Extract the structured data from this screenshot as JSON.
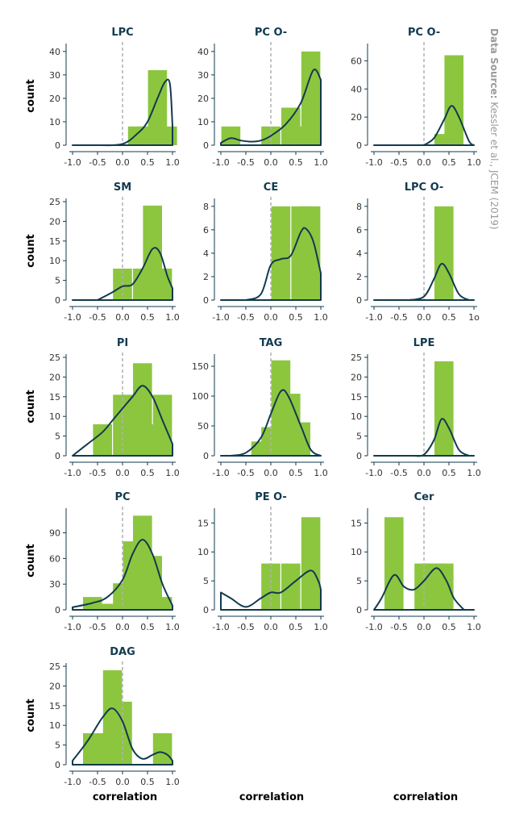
{
  "chart_data": [
    {
      "type": "bar",
      "title": "LPC",
      "ylabel": "count",
      "xlabel": "",
      "ylim": [
        0,
        42
      ],
      "yticks": [
        0,
        10,
        20,
        30,
        40
      ],
      "xticks": [
        "-1.0",
        "-0.5",
        "0.0",
        "0.5",
        "1.0"
      ],
      "bars": [
        {
          "x": 0.3,
          "value": 8
        },
        {
          "x": 0.5,
          "value": 8
        },
        {
          "x": 0.7,
          "value": 32
        },
        {
          "x": 0.9,
          "value": 8
        }
      ],
      "density": [
        [
          -0.5,
          0
        ],
        [
          0.0,
          0.5
        ],
        [
          0.3,
          5
        ],
        [
          0.5,
          10
        ],
        [
          0.7,
          20
        ],
        [
          0.85,
          27
        ],
        [
          0.95,
          26
        ],
        [
          1.0,
          8
        ]
      ],
      "zero_line": true
    },
    {
      "type": "bar",
      "title": "PC O-",
      "ylabel": "",
      "xlabel": "",
      "ylim": [
        0,
        42
      ],
      "yticks": [
        0,
        10,
        20,
        30,
        40
      ],
      "xticks": [
        "-1.0",
        "-0.5",
        "0.0",
        "0.5",
        "1.0"
      ],
      "bars": [
        {
          "x": -0.8,
          "value": 8
        },
        {
          "x": 0.0,
          "value": 8
        },
        {
          "x": 0.4,
          "value": 16
        },
        {
          "x": 0.6,
          "value": 8
        },
        {
          "x": 0.8,
          "value": 40
        }
      ],
      "density": [
        [
          -1.0,
          1
        ],
        [
          -0.8,
          3
        ],
        [
          -0.6,
          2
        ],
        [
          -0.4,
          1.5
        ],
        [
          -0.2,
          2
        ],
        [
          0.0,
          4
        ],
        [
          0.3,
          9
        ],
        [
          0.6,
          18
        ],
        [
          0.85,
          32
        ],
        [
          1.0,
          28
        ]
      ],
      "zero_line": true
    },
    {
      "type": "bar",
      "title": "PC O-",
      "ylabel": "",
      "xlabel": "",
      "ylim": [
        0,
        70
      ],
      "yticks": [
        0,
        20,
        40,
        60
      ],
      "xticks": [
        "-1.0",
        "-0.5",
        "0.0",
        "0.5",
        "1.0"
      ],
      "bars": [
        {
          "x": 0.4,
          "value": 8
        },
        {
          "x": 0.6,
          "value": 64
        }
      ],
      "density": [
        [
          0.0,
          0
        ],
        [
          0.2,
          5
        ],
        [
          0.4,
          18
        ],
        [
          0.55,
          28
        ],
        [
          0.7,
          20
        ],
        [
          0.9,
          3
        ],
        [
          1.0,
          0
        ]
      ],
      "zero_line": true
    },
    {
      "type": "bar",
      "title": "SM",
      "ylabel": "count",
      "xlabel": "",
      "ylim": [
        0,
        25
      ],
      "yticks": [
        0,
        5,
        10,
        15,
        20,
        25
      ],
      "xticks": [
        "-1.0",
        "-0.5",
        "0.0",
        "0.5",
        "1.0"
      ],
      "bars": [
        {
          "x": 0.0,
          "value": 8
        },
        {
          "x": 0.4,
          "value": 8
        },
        {
          "x": 0.6,
          "value": 24
        },
        {
          "x": 0.8,
          "value": 8
        }
      ],
      "density": [
        [
          -0.5,
          0
        ],
        [
          -0.2,
          2
        ],
        [
          0.0,
          3.5
        ],
        [
          0.2,
          4
        ],
        [
          0.4,
          8
        ],
        [
          0.6,
          13
        ],
        [
          0.75,
          12
        ],
        [
          0.9,
          6
        ],
        [
          1.0,
          3
        ]
      ],
      "zero_line": true
    },
    {
      "type": "bar",
      "title": "CE",
      "ylabel": "",
      "xlabel": "",
      "ylim": [
        0,
        8.4
      ],
      "yticks": [
        0,
        2,
        4,
        6,
        8
      ],
      "xticks": [
        "-1.0",
        "-0.5",
        "0.0",
        "0.5",
        "1.0"
      ],
      "bars": [
        {
          "x": 0.2,
          "value": 8
        },
        {
          "x": 0.6,
          "value": 8
        },
        {
          "x": 0.8,
          "value": 8
        }
      ],
      "density": [
        [
          -0.5,
          0
        ],
        [
          -0.2,
          0.5
        ],
        [
          0.0,
          3
        ],
        [
          0.2,
          3.5
        ],
        [
          0.4,
          3.8
        ],
        [
          0.6,
          5.8
        ],
        [
          0.7,
          6.1
        ],
        [
          0.85,
          5
        ],
        [
          1.0,
          2.3
        ]
      ],
      "zero_line": true
    },
    {
      "type": "bar",
      "title": "LPC O-",
      "ylabel": "",
      "xlabel": "",
      "ylim": [
        0,
        8.4
      ],
      "yticks": [
        0,
        2,
        4,
        6,
        8
      ],
      "xticks": [
        "-1.0",
        "-0.5",
        "0.0",
        "0.5",
        "1o"
      ],
      "bars": [
        {
          "x": 0.4,
          "value": 8
        }
      ],
      "density": [
        [
          -0.3,
          0
        ],
        [
          0.0,
          0.3
        ],
        [
          0.2,
          1.8
        ],
        [
          0.35,
          3.1
        ],
        [
          0.5,
          2.3
        ],
        [
          0.7,
          0.5
        ],
        [
          0.9,
          0
        ]
      ],
      "zero_line": true
    },
    {
      "type": "bar",
      "title": "PI",
      "ylabel": "count",
      "xlabel": "",
      "ylim": [
        0,
        25
      ],
      "yticks": [
        0,
        5,
        10,
        15,
        20,
        25
      ],
      "xticks": [
        "-1.0",
        "-0.5",
        "0.0",
        "0.5",
        "1.0"
      ],
      "bars": [
        {
          "x": -0.4,
          "value": 8
        },
        {
          "x": 0.0,
          "value": 15.5
        },
        {
          "x": 0.2,
          "value": 15.5
        },
        {
          "x": 0.4,
          "value": 23.5
        },
        {
          "x": 0.6,
          "value": 8
        },
        {
          "x": 0.8,
          "value": 15.5
        }
      ],
      "density": [
        [
          -1.0,
          0
        ],
        [
          -0.7,
          3
        ],
        [
          -0.4,
          6
        ],
        [
          -0.2,
          9
        ],
        [
          0.0,
          12
        ],
        [
          0.2,
          15
        ],
        [
          0.4,
          17.8
        ],
        [
          0.6,
          15
        ],
        [
          0.8,
          9
        ],
        [
          1.0,
          3
        ]
      ],
      "zero_line": true
    },
    {
      "type": "bar",
      "title": "TAG",
      "ylabel": "",
      "xlabel": "",
      "ylim": [
        0,
        165
      ],
      "yticks": [
        0,
        50,
        100,
        150
      ],
      "xticks": [
        "-1.0",
        "-0.5",
        "0.0",
        "0.5",
        "1.0"
      ],
      "bars": [
        {
          "x": -0.2,
          "value": 24
        },
        {
          "x": 0.0,
          "value": 48
        },
        {
          "x": 0.2,
          "value": 160
        },
        {
          "x": 0.4,
          "value": 104
        },
        {
          "x": 0.6,
          "value": 56
        }
      ],
      "density": [
        [
          -0.8,
          0
        ],
        [
          -0.5,
          5
        ],
        [
          -0.2,
          30
        ],
        [
          0.0,
          70
        ],
        [
          0.2,
          108
        ],
        [
          0.35,
          100
        ],
        [
          0.6,
          50
        ],
        [
          0.8,
          10
        ],
        [
          1.0,
          0
        ]
      ],
      "zero_line": true
    },
    {
      "type": "bar",
      "title": "LPE",
      "ylabel": "",
      "xlabel": "",
      "ylim": [
        0,
        25
      ],
      "yticks": [
        0,
        5,
        10,
        15,
        20,
        25
      ],
      "xticks": [
        "-1.0",
        "-0.5",
        "0.0",
        "0.5",
        "1.0"
      ],
      "bars": [
        {
          "x": 0.4,
          "value": 24
        }
      ],
      "density": [
        [
          -0.2,
          0
        ],
        [
          0.0,
          0.3
        ],
        [
          0.2,
          4
        ],
        [
          0.35,
          9.3
        ],
        [
          0.5,
          7
        ],
        [
          0.7,
          1.5
        ],
        [
          0.9,
          0
        ]
      ],
      "zero_line": true
    },
    {
      "type": "bar",
      "title": "PC",
      "ylabel": "count",
      "xlabel": "",
      "ylim": [
        0,
        115
      ],
      "yticks": [
        0,
        30,
        60,
        90
      ],
      "xticks": [
        "-1.0",
        "-0.5",
        "0.0",
        "0.5",
        "1.0"
      ],
      "bars": [
        {
          "x": -0.6,
          "value": 15
        },
        {
          "x": -0.4,
          "value": 7
        },
        {
          "x": -0.2,
          "value": 7
        },
        {
          "x": 0.0,
          "value": 31
        },
        {
          "x": 0.2,
          "value": 80
        },
        {
          "x": 0.4,
          "value": 110
        },
        {
          "x": 0.6,
          "value": 63
        },
        {
          "x": 0.8,
          "value": 15
        }
      ],
      "density": [
        [
          -1.0,
          3
        ],
        [
          -0.6,
          8
        ],
        [
          -0.3,
          15
        ],
        [
          0.0,
          35
        ],
        [
          0.2,
          65
        ],
        [
          0.4,
          82
        ],
        [
          0.6,
          65
        ],
        [
          0.8,
          30
        ],
        [
          1.0,
          5
        ]
      ],
      "zero_line": true
    },
    {
      "type": "bar",
      "title": "PE O-",
      "ylabel": "",
      "xlabel": "",
      "ylim": [
        0,
        17
      ],
      "yticks": [
        0,
        5,
        10,
        15
      ],
      "xticks": [
        "-1.0",
        "-0.5",
        "0.0",
        "0.5",
        "1.0"
      ],
      "bars": [
        {
          "x": 0.0,
          "value": 8
        },
        {
          "x": 0.4,
          "value": 8
        },
        {
          "x": 0.8,
          "value": 16
        }
      ],
      "density": [
        [
          -1.0,
          3
        ],
        [
          -0.8,
          2
        ],
        [
          -0.5,
          0.5
        ],
        [
          -0.2,
          2
        ],
        [
          0.0,
          3
        ],
        [
          0.2,
          3
        ],
        [
          0.5,
          5
        ],
        [
          0.8,
          6.8
        ],
        [
          0.95,
          5
        ],
        [
          1.0,
          3.5
        ]
      ],
      "zero_line": true
    },
    {
      "type": "bar",
      "title": "Cer",
      "ylabel": "",
      "xlabel": "",
      "ylim": [
        0,
        17
      ],
      "yticks": [
        0,
        5,
        10,
        15
      ],
      "xticks": [
        "-1.0",
        "-0.5",
        "0.0",
        "0.5",
        "1.0"
      ],
      "bars": [
        {
          "x": -0.6,
          "value": 16
        },
        {
          "x": 0.0,
          "value": 8
        },
        {
          "x": 0.2,
          "value": 8
        },
        {
          "x": 0.4,
          "value": 8
        }
      ],
      "density": [
        [
          -1.0,
          0
        ],
        [
          -0.85,
          2
        ],
        [
          -0.6,
          6
        ],
        [
          -0.4,
          4
        ],
        [
          -0.2,
          3.5
        ],
        [
          0.0,
          5
        ],
        [
          0.25,
          7.2
        ],
        [
          0.45,
          5
        ],
        [
          0.6,
          2
        ],
        [
          0.8,
          0
        ]
      ],
      "zero_line": true
    },
    {
      "type": "bar",
      "title": "DAG",
      "ylabel": "count",
      "xlabel": "correlation",
      "ylim": [
        0,
        25
      ],
      "yticks": [
        0,
        5,
        10,
        15,
        20,
        25
      ],
      "xticks": [
        "-1.0",
        "-0.5",
        "0.0",
        "0.5",
        "1.0"
      ],
      "bars": [
        {
          "x": -0.6,
          "value": 8
        },
        {
          "x": -0.4,
          "value": 8
        },
        {
          "x": -0.2,
          "value": 24
        },
        {
          "x": 0.0,
          "value": 16
        },
        {
          "x": 0.8,
          "value": 8
        }
      ],
      "density": [
        [
          -1.0,
          1
        ],
        [
          -0.7,
          6
        ],
        [
          -0.4,
          12
        ],
        [
          -0.2,
          14.3
        ],
        [
          0.0,
          11
        ],
        [
          0.2,
          4
        ],
        [
          0.4,
          1.5
        ],
        [
          0.6,
          2.5
        ],
        [
          0.75,
          3.2
        ],
        [
          0.9,
          2.5
        ],
        [
          1.0,
          1
        ]
      ],
      "zero_line": true
    }
  ],
  "column_xlabels": [
    "correlation",
    "correlation",
    "correlation"
  ],
  "source": {
    "label": "Data Source:",
    "text": "Kessler et al., JCEM (2019)"
  },
  "colors": {
    "bar": "#8cc63f",
    "curve": "#123a4f",
    "zero_line": "#b0b0b0",
    "axis": "#123a4f"
  }
}
